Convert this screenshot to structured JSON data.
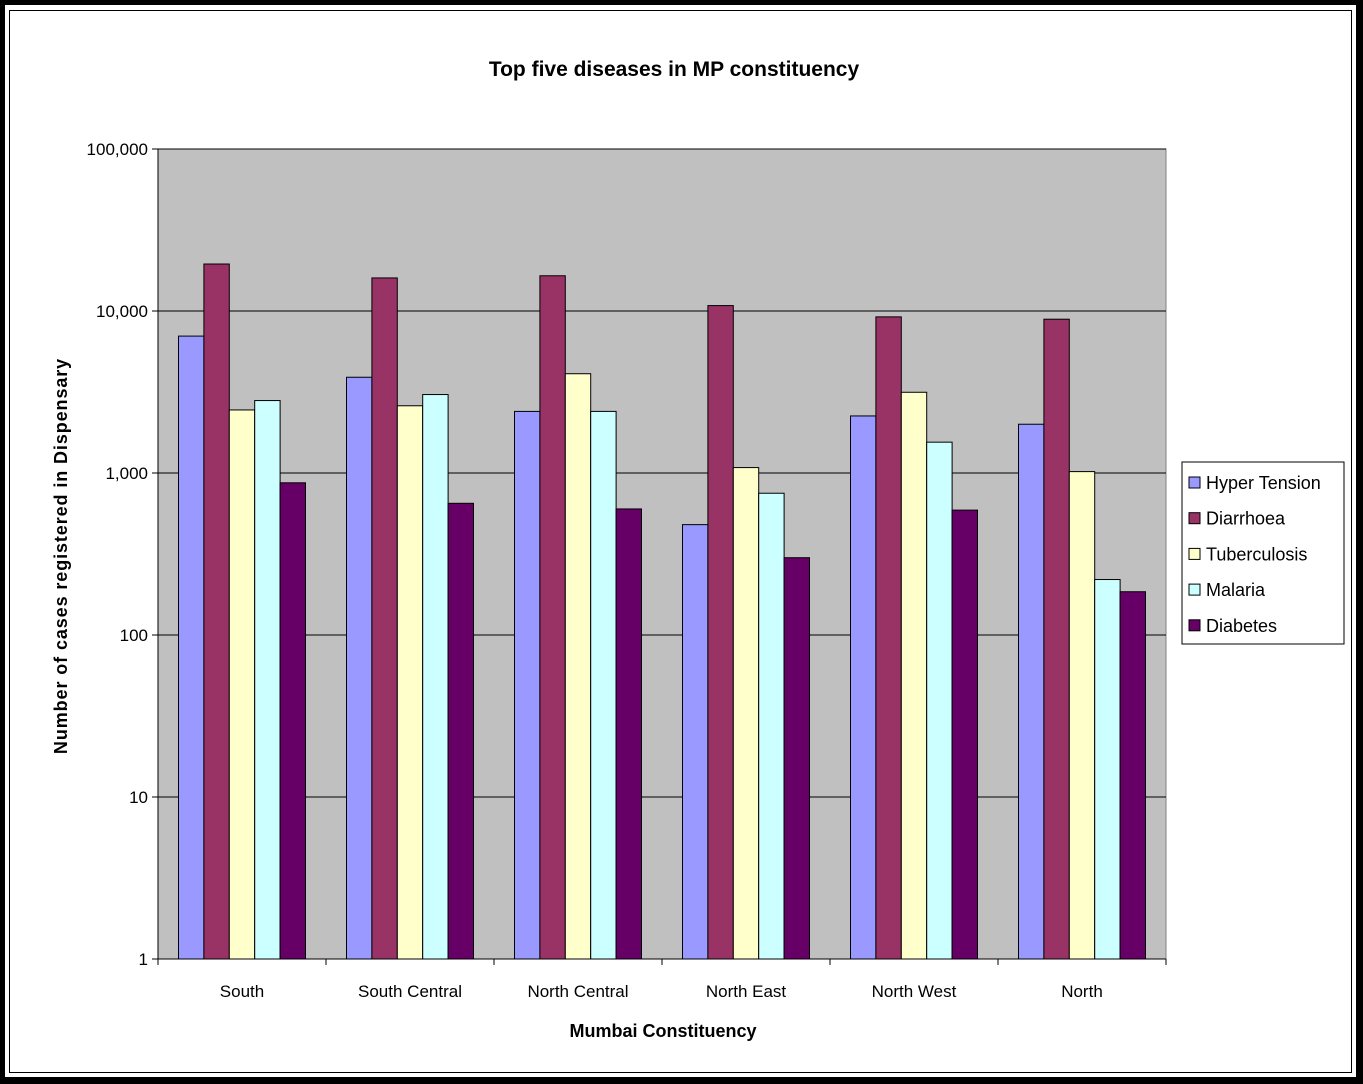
{
  "chart_data": {
    "type": "bar",
    "title": "Top five diseases in MP constituency",
    "xlabel": "Mumbai Constituency",
    "ylabel": "Number of cases registered in Dispensary",
    "yscale": "log",
    "ylim": [
      1,
      100000
    ],
    "yticks": [
      1,
      10,
      100,
      1000,
      10000,
      100000
    ],
    "ytick_labels": [
      "1",
      "10",
      "100",
      "1,000",
      "10,000",
      "100,000"
    ],
    "grid": true,
    "plot_background": "#c0c0c0",
    "legend_position": "right",
    "categories": [
      "South",
      "South Central",
      "North Central",
      "North East",
      "North West",
      "North"
    ],
    "series": [
      {
        "name": "Hyper Tension",
        "color": "#9999ff",
        "values": [
          7000,
          3900,
          2400,
          480,
          2250,
          2000
        ]
      },
      {
        "name": "Diarrhoea",
        "color": "#993366",
        "values": [
          19500,
          16000,
          16500,
          10800,
          9200,
          8900
        ]
      },
      {
        "name": "Tuberculosis",
        "color": "#ffffcc",
        "values": [
          2450,
          2600,
          4100,
          1080,
          3150,
          1020
        ]
      },
      {
        "name": "Malaria",
        "color": "#ccffff",
        "values": [
          2800,
          3050,
          2400,
          750,
          1550,
          220
        ]
      },
      {
        "name": "Diabetes",
        "color": "#660066",
        "values": [
          870,
          650,
          600,
          300,
          590,
          185
        ]
      }
    ]
  }
}
